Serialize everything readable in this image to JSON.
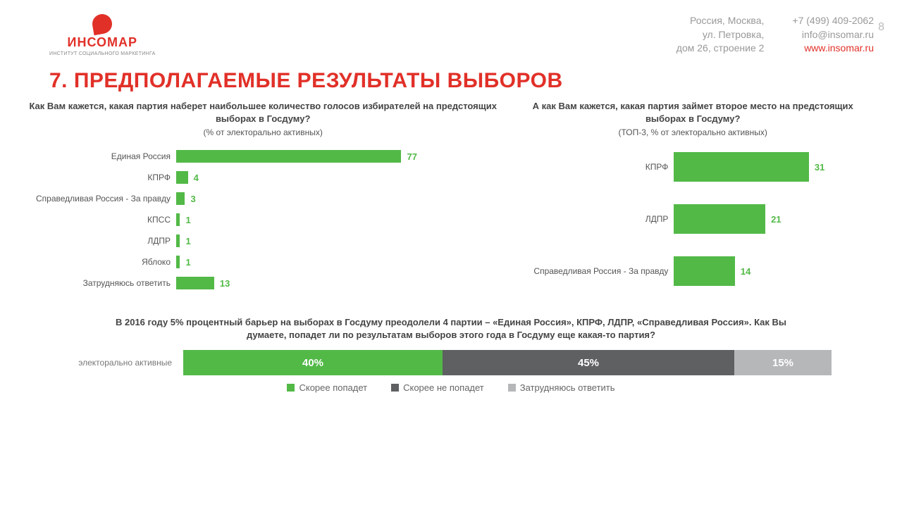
{
  "page_number": "8",
  "logo": {
    "name": "ИНСОМАР",
    "subtitle": "ИНСТИТУТ СОЦИАЛЬНОГО МАРКЕТИНГА"
  },
  "contacts": {
    "address1": "Россия, Москва,",
    "address2": "ул. Петровка,",
    "address3": "дом 26, строение 2",
    "phone": "+7 (499) 409-2062",
    "email": "info@insomar.ru",
    "website": "www.insomar.ru"
  },
  "title": "7. ПРЕДПОЛАГАЕМЫЕ РЕЗУЛЬТАТЫ ВЫБОРОВ",
  "colors": {
    "accent": "#e13028",
    "bar_green": "#52b947",
    "value_green": "#52b947",
    "stacked_green": "#52b947",
    "stacked_dark": "#5f6062",
    "stacked_grey": "#b6b7b9",
    "text_grey": "#555"
  },
  "chart_left": {
    "question": "Как Вам кажется, какая партия наберет наибольшее количество голосов избирателей на предстоящих выборах в Госдуму?",
    "sub": "(% от электорально активных)",
    "max": 77,
    "items": [
      {
        "label": "Единая Россия",
        "value": 77
      },
      {
        "label": "КПРФ",
        "value": 4
      },
      {
        "label": "Справедливая Россия - За правду",
        "value": 3
      },
      {
        "label": "КПСС",
        "value": 1
      },
      {
        "label": "ЛДПР",
        "value": 1
      },
      {
        "label": "Яблоко",
        "value": 1
      },
      {
        "label": "Затрудняюсь ответить",
        "value": 13
      }
    ]
  },
  "chart_right": {
    "question": "А как Вам кажется, какая партия займет второе место на предстоящих выборах в Госдуму?",
    "sub": "(ТОП-3, % от электорально активных)",
    "max": 31,
    "items": [
      {
        "label": "КПРФ",
        "value": 31
      },
      {
        "label": "ЛДПР",
        "value": 21
      },
      {
        "label": "Справедливая Россия - За правду",
        "value": 14
      }
    ]
  },
  "note": "В 2016 году 5% процентный барьер на выборах в Госдуму преодолели 4 партии – «Единая Россия», КПРФ, ЛДПР, «Справедливая Россия». Как Вы думаете, попадет ли по результатам выборов этого года в Госдуму еще какая-то партия?",
  "stacked": {
    "label": "электорально активные",
    "segments": [
      {
        "label": "40%",
        "value": 40,
        "color": "#52b947"
      },
      {
        "label": "45%",
        "value": 45,
        "color": "#5f6062"
      },
      {
        "label": "15%",
        "value": 15,
        "color": "#b6b7b9"
      }
    ]
  },
  "legend": [
    {
      "label": "Скорее попадет",
      "color": "#52b947"
    },
    {
      "label": "Скорее не попадет",
      "color": "#5f6062"
    },
    {
      "label": "Затрудняюсь ответить",
      "color": "#b6b7b9"
    }
  ]
}
